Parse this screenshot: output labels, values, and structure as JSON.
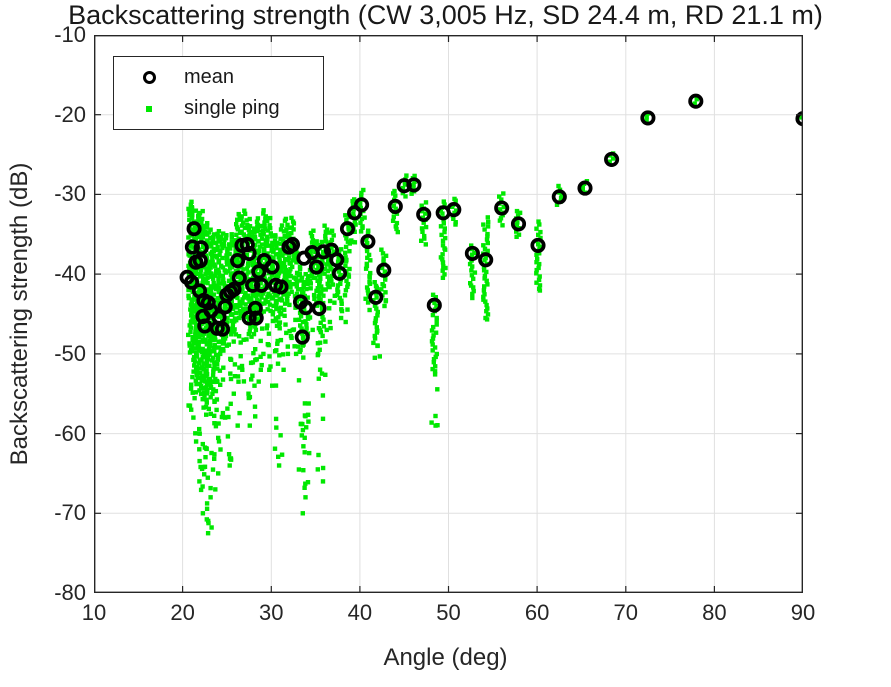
{
  "chart_data": {
    "type": "scatter",
    "title": "Backscattering strength (CW 3,005 Hz, SD 24.4 m, RD 21.1 m)",
    "xlabel": "Angle (deg)",
    "ylabel": "Backscattering strength (dB)",
    "xlim": [
      10,
      90
    ],
    "ylim": [
      -80,
      -10
    ],
    "xticks": [
      10,
      20,
      30,
      40,
      50,
      60,
      70,
      80,
      90
    ],
    "yticks": [
      -80,
      -70,
      -60,
      -50,
      -40,
      -30,
      -20,
      -10
    ],
    "grid": true,
    "legend_position": "top-left",
    "colors": {
      "mean_marker": "#000000",
      "single_ping": "#00e800",
      "grid": "#e0e0e0",
      "axis": "#262626",
      "background": "#ffffff"
    },
    "series": [
      {
        "name": "mean",
        "marker": "black-open-circle",
        "color": "#000000",
        "points": [
          [
            20.5,
            -40.4
          ],
          [
            21.0,
            -41.0
          ],
          [
            21.1,
            -36.6
          ],
          [
            21.3,
            -34.3
          ],
          [
            21.5,
            -38.5
          ],
          [
            21.9,
            -42.1
          ],
          [
            22.0,
            -38.3
          ],
          [
            22.1,
            -36.7
          ],
          [
            22.3,
            -45.3
          ],
          [
            22.4,
            -43.3
          ],
          [
            22.5,
            -46.5
          ],
          [
            22.9,
            -43.6
          ],
          [
            23.2,
            -44.6
          ],
          [
            23.9,
            -46.8
          ],
          [
            24.1,
            -45.4
          ],
          [
            24.5,
            -46.9
          ],
          [
            24.8,
            -44.1
          ],
          [
            25.0,
            -42.6
          ],
          [
            25.4,
            -42.2
          ],
          [
            25.8,
            -41.9
          ],
          [
            26.2,
            -38.3
          ],
          [
            26.4,
            -40.5
          ],
          [
            26.7,
            -36.4
          ],
          [
            27.3,
            -36.3
          ],
          [
            27.5,
            -37.4
          ],
          [
            27.5,
            -45.5
          ],
          [
            27.9,
            -41.4
          ],
          [
            28.2,
            -44.3
          ],
          [
            28.3,
            -45.5
          ],
          [
            28.6,
            -39.7
          ],
          [
            28.9,
            -41.4
          ],
          [
            29.2,
            -38.3
          ],
          [
            30.1,
            -39.1
          ],
          [
            30.5,
            -41.4
          ],
          [
            31.1,
            -41.6
          ],
          [
            32.0,
            -36.6
          ],
          [
            32.4,
            -36.3
          ],
          [
            33.3,
            -43.5
          ],
          [
            33.5,
            -47.9
          ],
          [
            33.7,
            -38.0
          ],
          [
            33.9,
            -44.2
          ],
          [
            34.6,
            -37.3
          ],
          [
            35.1,
            -39.1
          ],
          [
            35.4,
            -44.3
          ],
          [
            35.9,
            -37.2
          ],
          [
            36.8,
            -37.0
          ],
          [
            37.4,
            -38.2
          ],
          [
            37.7,
            -39.9
          ],
          [
            38.6,
            -34.3
          ],
          [
            39.4,
            -32.3
          ],
          [
            40.2,
            -31.3
          ],
          [
            40.9,
            -35.9
          ],
          [
            41.8,
            -42.9
          ],
          [
            42.7,
            -39.5
          ],
          [
            44.0,
            -31.5
          ],
          [
            45.0,
            -28.9
          ],
          [
            46.1,
            -28.8
          ],
          [
            47.2,
            -32.5
          ],
          [
            48.4,
            -43.9
          ],
          [
            49.4,
            -32.3
          ],
          [
            50.6,
            -31.9
          ],
          [
            52.7,
            -37.4
          ],
          [
            54.2,
            -38.2
          ],
          [
            56.0,
            -31.7
          ],
          [
            57.9,
            -33.7
          ],
          [
            60.1,
            -36.4
          ],
          [
            62.5,
            -30.3
          ],
          [
            65.4,
            -29.2
          ],
          [
            68.4,
            -25.6
          ],
          [
            72.5,
            -20.4
          ],
          [
            77.9,
            -18.3
          ],
          [
            90.0,
            -20.5
          ]
        ]
      },
      {
        "name": "single ping",
        "marker": "green-square-dot",
        "color": "#00e800",
        "representation": "vertical spread per angle: [angle_deg, top_dB, dense_bottom_dB, lowest_outlier_dB]",
        "spreads": [
          [
            20.9,
            -31,
            -50,
            -57
          ],
          [
            21.3,
            -31.5,
            -52,
            -58
          ],
          [
            21.7,
            -32,
            -54,
            -61
          ],
          [
            22.1,
            -32,
            -55,
            -66
          ],
          [
            22.5,
            -33.5,
            -56,
            -70
          ],
          [
            22.9,
            -34,
            -57,
            -72.5
          ],
          [
            23.3,
            -35,
            -55,
            -68
          ],
          [
            23.8,
            -35,
            -52,
            -65
          ],
          [
            24.3,
            -34.5,
            -50,
            -62
          ],
          [
            24.8,
            -35,
            -50,
            -58
          ],
          [
            25.3,
            -36,
            -48,
            -64
          ],
          [
            25.8,
            -35,
            -47,
            -55
          ],
          [
            26.3,
            -32.5,
            -46,
            -59
          ],
          [
            26.8,
            -32,
            -45,
            -52
          ],
          [
            27.3,
            -33,
            -46,
            -55
          ],
          [
            27.8,
            -34,
            -48,
            -59
          ],
          [
            28.3,
            -33,
            -47,
            -54
          ],
          [
            28.8,
            -34,
            -46,
            -52
          ],
          [
            29.3,
            -32,
            -44,
            -50
          ],
          [
            29.8,
            -33,
            -45,
            -52
          ],
          [
            30.3,
            -35,
            -46,
            -54
          ],
          [
            30.8,
            -36,
            -47,
            -64
          ],
          [
            31.3,
            -34,
            -45,
            -52
          ],
          [
            31.8,
            -33,
            -44,
            -50
          ],
          [
            32.3,
            -33,
            -42,
            -48
          ],
          [
            33.0,
            -36,
            -44,
            -50
          ],
          [
            33.4,
            -40,
            -50,
            -70
          ],
          [
            33.9,
            -40,
            -48,
            -68
          ],
          [
            34.6,
            -34.5,
            -42,
            -47
          ],
          [
            35.2,
            -36,
            -44,
            -50
          ],
          [
            35.7,
            -36,
            -48,
            -66
          ],
          [
            36.3,
            -34,
            -42,
            -47
          ],
          [
            36.8,
            -34.5,
            -42,
            -46
          ],
          [
            37.7,
            -37,
            -44,
            -45.5
          ],
          [
            38.6,
            -32.5,
            -42,
            -46
          ],
          [
            39.4,
            -30.5,
            -35,
            -36
          ],
          [
            40.3,
            -29.4,
            -35,
            -35.5
          ],
          [
            40.9,
            -34.5,
            -43,
            -44.5
          ],
          [
            41.8,
            -41,
            -49,
            -50.5
          ],
          [
            42.7,
            -37,
            -43,
            -44
          ],
          [
            44.0,
            -29.5,
            -35,
            -35.5
          ],
          [
            45.0,
            -27.6,
            -30.5,
            -31
          ],
          [
            46.1,
            -27.6,
            -30,
            -30.5
          ],
          [
            47.2,
            -31,
            -36.5,
            -37
          ],
          [
            48.4,
            -42.5,
            -53,
            -59
          ],
          [
            49.4,
            -31,
            -40.5,
            -41
          ],
          [
            50.6,
            -30.5,
            -34,
            -34.5
          ],
          [
            52.7,
            -36.5,
            -43,
            -43.5
          ],
          [
            54.2,
            -33,
            -46,
            -46.5
          ],
          [
            56.0,
            -30,
            -34,
            -34.5
          ],
          [
            57.9,
            -32,
            -35.5,
            -36
          ],
          [
            60.1,
            -33.5,
            -42.5,
            -43
          ],
          [
            62.5,
            -29,
            -31.5,
            -32
          ],
          [
            65.4,
            -28.3,
            -30,
            -30.3
          ],
          [
            68.4,
            -24.8,
            -26.3,
            -26.6
          ],
          [
            72.5,
            -19.9,
            -21,
            -21
          ],
          [
            77.9,
            -17.8,
            -18.9,
            -18.9
          ],
          [
            90.0,
            -19.9,
            -21,
            -21
          ]
        ]
      }
    ]
  }
}
